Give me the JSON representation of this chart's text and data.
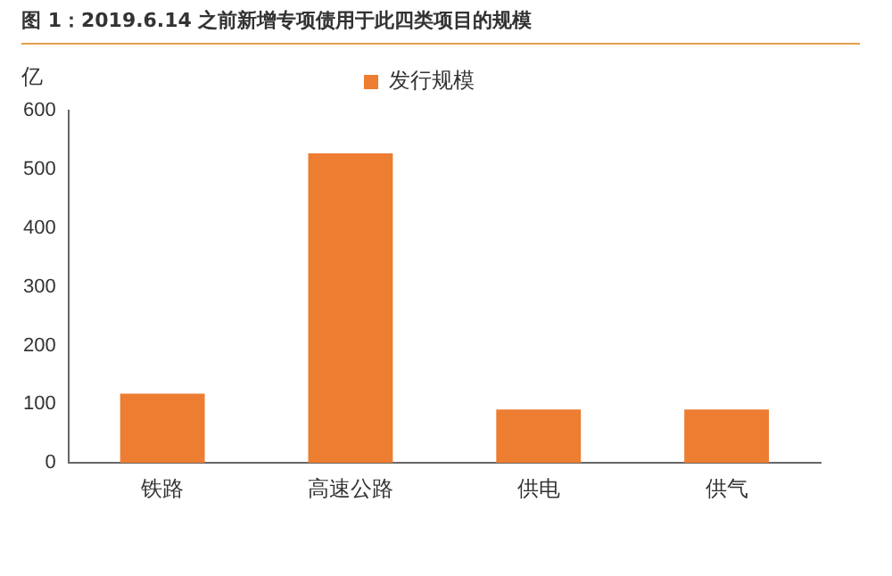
{
  "chart_data": {
    "type": "bar",
    "title": "图 1：2019.6.14 之前新增专项债用于此四类项目的规模",
    "ylabel": "亿",
    "categories": [
      "铁路",
      "高速公路",
      "供电",
      "供气"
    ],
    "series": [
      {
        "name": "发行规模",
        "color": "#ed7d31",
        "values": [
          118,
          527,
          91,
          91
        ]
      }
    ],
    "ylim": [
      0,
      600
    ],
    "yticks": [
      0,
      100,
      200,
      300,
      400,
      500,
      600
    ],
    "grid": false,
    "legend": "top"
  }
}
